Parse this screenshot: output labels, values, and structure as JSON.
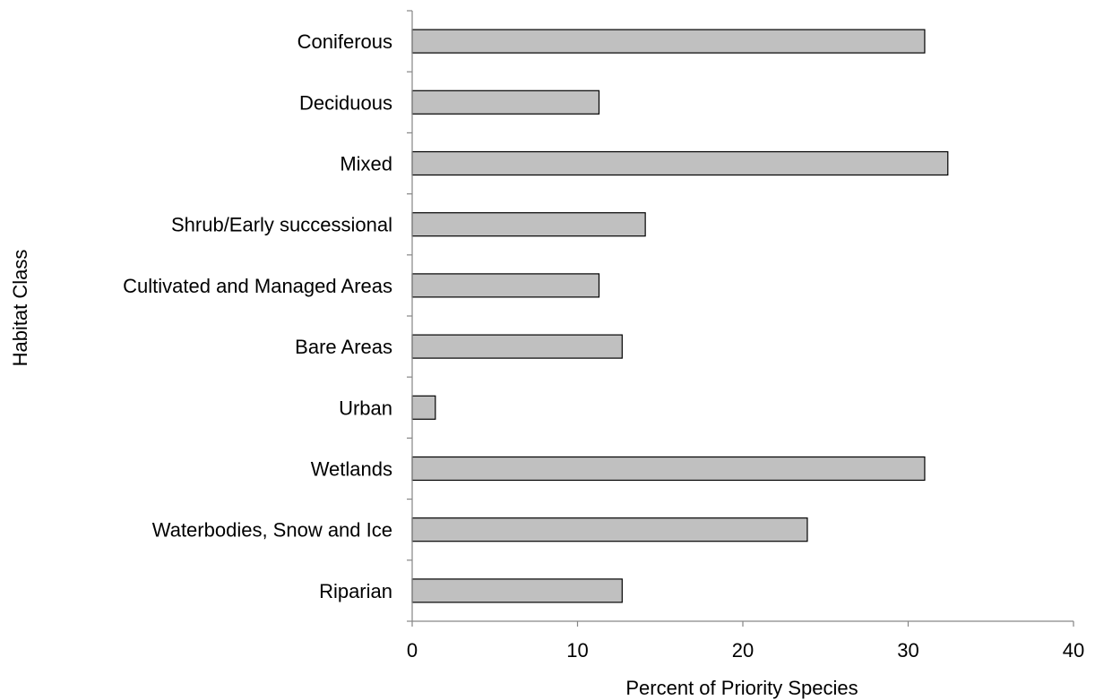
{
  "chart_data": {
    "type": "bar",
    "orientation": "horizontal",
    "title": "",
    "xlabel": "Percent of Priority Species",
    "ylabel": "Habitat Class",
    "categories": [
      "Coniferous",
      "Deciduous",
      "Mixed",
      "Shrub/Early successional",
      "Cultivated and Managed Areas",
      "Bare Areas",
      "Urban",
      "Wetlands",
      "Waterbodies, Snow and Ice",
      "Riparian"
    ],
    "values": [
      31,
      11.3,
      32.4,
      14.1,
      11.3,
      12.7,
      1.4,
      31,
      23.9,
      12.7
    ],
    "xlim": [
      0,
      40
    ],
    "xticks": [
      "0",
      "10",
      "20",
      "30",
      "40"
    ],
    "grid": false,
    "legend": "none",
    "colors": {
      "bar_fill": "#c0c0c0",
      "bar_stroke": "#000000",
      "axis": "#868686",
      "text": "#000000"
    }
  }
}
